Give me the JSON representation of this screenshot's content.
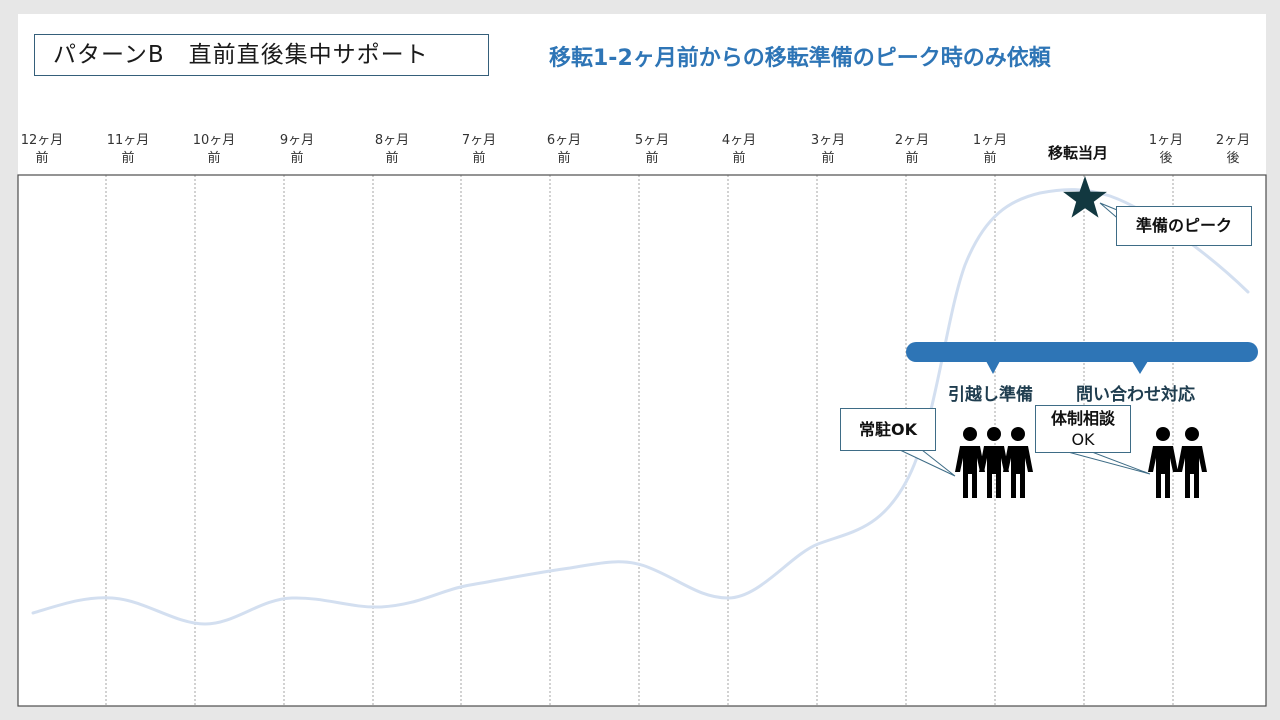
{
  "header": {
    "pattern_title": "パターンB　直前直後集中サポート",
    "subtitle": "移転1-2ヶ月前からの移転準備のピーク時のみ依頼"
  },
  "timeline": {
    "months": [
      {
        "line1": "12ヶ月",
        "line2": "前"
      },
      {
        "line1": "11ヶ月",
        "line2": "前"
      },
      {
        "line1": "10ヶ月",
        "line2": "前"
      },
      {
        "line1": "9ヶ月",
        "line2": "前"
      },
      {
        "line1": "8ヶ月",
        "line2": "前"
      },
      {
        "line1": "7ヶ月",
        "line2": "前"
      },
      {
        "line1": "6ヶ月",
        "line2": "前"
      },
      {
        "line1": "5ヶ月",
        "line2": "前"
      },
      {
        "line1": "4ヶ月",
        "line2": "前"
      },
      {
        "line1": "3ヶ月",
        "line2": "前"
      },
      {
        "line1": "2ヶ月",
        "line2": "前"
      },
      {
        "line1": "1ヶ月",
        "line2": "前"
      },
      {
        "line1": "移転当月",
        "line2": ""
      },
      {
        "line1": "1ヶ月",
        "line2": "後"
      },
      {
        "line1": "2ヶ月",
        "line2": "後"
      }
    ]
  },
  "annotations": {
    "peak_label": "準備のピーク",
    "phase_left": "引越し準備",
    "phase_right": "問い合わせ対応",
    "callout_resident": "常駐OK",
    "callout_consult_line1": "体制相談",
    "callout_consult_line2": "OK"
  },
  "colors": {
    "curve": "#d3dff0",
    "bar": "#2e75b6",
    "star": "#123840",
    "subtitle": "#2e75b6",
    "grid": "#a6a6a6"
  }
}
